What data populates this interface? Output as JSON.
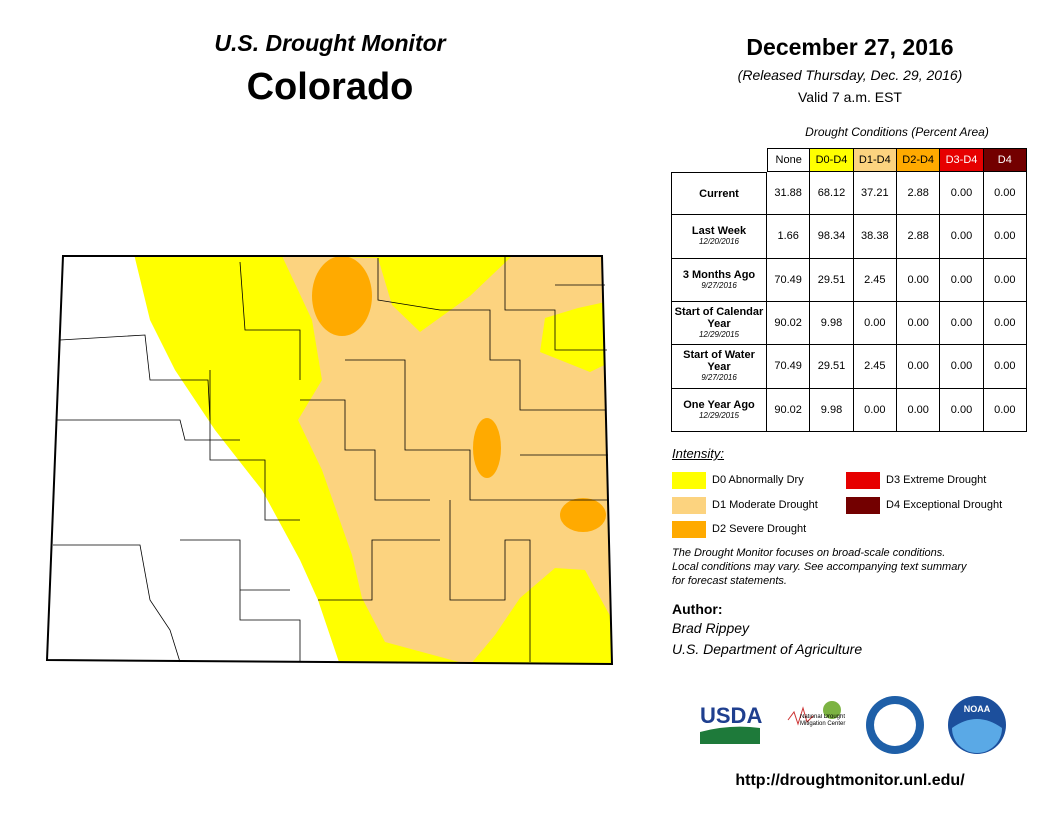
{
  "header": {
    "title": "U.S. Drought Monitor",
    "state": "Colorado",
    "date": "December 27, 2016",
    "released": "(Released Thursday, Dec. 29, 2016)",
    "valid": "Valid 7 a.m. EST"
  },
  "table": {
    "caption": "Drought Conditions (Percent Area)",
    "columns": [
      {
        "label": "None",
        "color": "#ffffff"
      },
      {
        "label": "D0-D4",
        "color": "#ffff00"
      },
      {
        "label": "D1-D4",
        "color": "#fcd37f"
      },
      {
        "label": "D2-D4",
        "color": "#ffaa00"
      },
      {
        "label": "D3-D4",
        "color": "#e60000"
      },
      {
        "label": "D4",
        "color": "#730000"
      }
    ],
    "rows": [
      {
        "label": "Current",
        "values": [
          "31.88",
          "68.12",
          "37.21",
          "2.88",
          "0.00",
          "0.00"
        ]
      },
      {
        "label": "Last Week",
        "date": "12/20/2016",
        "values": [
          "1.66",
          "98.34",
          "38.38",
          "2.88",
          "0.00",
          "0.00"
        ]
      },
      {
        "label": "3 Months Ago",
        "date": "9/27/2016",
        "values": [
          "70.49",
          "29.51",
          "2.45",
          "0.00",
          "0.00",
          "0.00"
        ]
      },
      {
        "label": "Start of Calendar Year",
        "date": "12/29/2015",
        "values": [
          "90.02",
          "9.98",
          "0.00",
          "0.00",
          "0.00",
          "0.00"
        ]
      },
      {
        "label": "Start of Water Year",
        "date": "9/27/2016",
        "values": [
          "70.49",
          "29.51",
          "2.45",
          "0.00",
          "0.00",
          "0.00"
        ]
      },
      {
        "label": "One Year Ago",
        "date": "12/29/2015",
        "values": [
          "90.02",
          "9.98",
          "0.00",
          "0.00",
          "0.00",
          "0.00"
        ]
      }
    ]
  },
  "legend": {
    "title": "Intensity:",
    "items": [
      {
        "label": "D0 Abnormally Dry",
        "color": "#ffff00"
      },
      {
        "label": "D1 Moderate Drought",
        "color": "#fcd37f"
      },
      {
        "label": "D2 Severe Drought",
        "color": "#ffaa00"
      },
      {
        "label": "D3 Extreme Drought",
        "color": "#e60000"
      },
      {
        "label": "D4 Exceptional Drought",
        "color": "#730000"
      }
    ]
  },
  "note": [
    "The Drought Monitor focuses on broad-scale conditions.",
    "Local conditions may vary. See accompanying text summary",
    "for forecast statements."
  ],
  "author": {
    "heading": "Author:",
    "name": "Brad Rippey",
    "organization": "U.S. Department of Agriculture"
  },
  "logos": {
    "usda": "USDA",
    "ndmc": "National Drought Mitigation Center",
    "noaa": "NOAA"
  },
  "url": "http://droughtmonitor.unl.edu/"
}
